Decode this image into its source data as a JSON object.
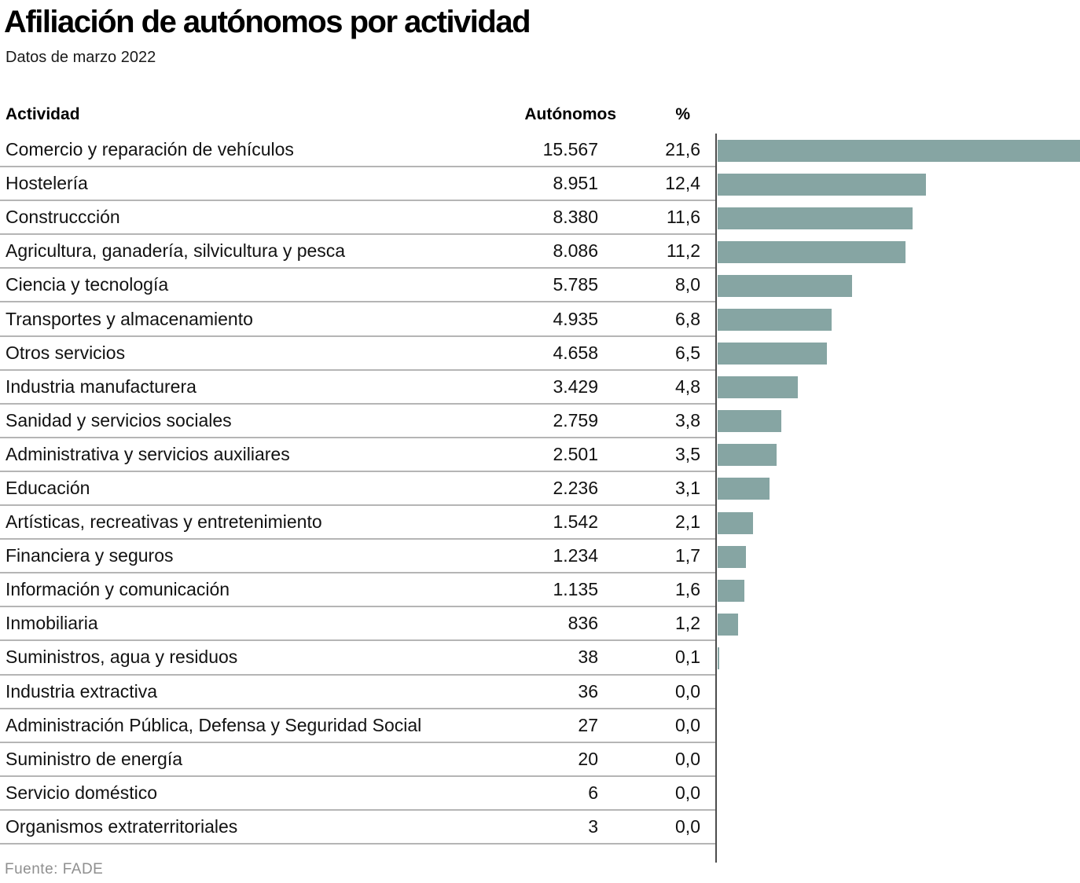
{
  "title": "Afiliación de autónomos por actividad",
  "subtitle": "Datos de marzo 2022",
  "source": "Fuente: FADE",
  "colors": {
    "bar": "#86a5a3",
    "divider": "#b5b5b5",
    "axis": "#4d4d4d",
    "source_text": "#8f8f8f"
  },
  "table": {
    "headers": {
      "activity": "Actividad",
      "autonomos": "Autónomos",
      "pct": "%"
    }
  },
  "chart_data": {
    "type": "bar",
    "orientation": "horizontal",
    "title": "Afiliación de autónomos por actividad",
    "subtitle": "Datos de marzo 2022",
    "source": "Fuente: FADE",
    "columns": [
      "Actividad",
      "Autónomos",
      "%"
    ],
    "max_pct": 21.6,
    "legend": false,
    "grid": false,
    "rows": [
      {
        "activity": "Comercio y reparación de vehículos",
        "autonomos": "15.567",
        "pct": "21,6",
        "pct_value": 21.6
      },
      {
        "activity": "Hostelería",
        "autonomos": "8.951",
        "pct": "12,4",
        "pct_value": 12.4
      },
      {
        "activity": "Construccción",
        "autonomos": "8.380",
        "pct": "11,6",
        "pct_value": 11.6
      },
      {
        "activity": "Agricultura, ganadería, silvicultura y pesca",
        "autonomos": "8.086",
        "pct": "11,2",
        "pct_value": 11.2
      },
      {
        "activity": "Ciencia y tecnología",
        "autonomos": "5.785",
        "pct": "8,0",
        "pct_value": 8.0
      },
      {
        "activity": "Transportes y almacenamiento",
        "autonomos": "4.935",
        "pct": "6,8",
        "pct_value": 6.8
      },
      {
        "activity": "Otros servicios",
        "autonomos": "4.658",
        "pct": "6,5",
        "pct_value": 6.5
      },
      {
        "activity": "Industria manufacturera",
        "autonomos": "3.429",
        "pct": "4,8",
        "pct_value": 4.8
      },
      {
        "activity": "Sanidad y servicios sociales",
        "autonomos": "2.759",
        "pct": "3,8",
        "pct_value": 3.8
      },
      {
        "activity": "Administrativa y servicios auxiliares",
        "autonomos": "2.501",
        "pct": "3,5",
        "pct_value": 3.5
      },
      {
        "activity": "Educación",
        "autonomos": "2.236",
        "pct": "3,1",
        "pct_value": 3.1
      },
      {
        "activity": "Artísticas, recreativas y entretenimiento",
        "autonomos": "1.542",
        "pct": "2,1",
        "pct_value": 2.1
      },
      {
        "activity": "Financiera y seguros",
        "autonomos": "1.234",
        "pct": "1,7",
        "pct_value": 1.7
      },
      {
        "activity": "Información y comunicación",
        "autonomos": "1.135",
        "pct": "1,6",
        "pct_value": 1.6
      },
      {
        "activity": "Inmobiliaria",
        "autonomos": "836",
        "pct": "1,2",
        "pct_value": 1.2
      },
      {
        "activity": "Suministros, agua y residuos",
        "autonomos": "38",
        "pct": "0,1",
        "pct_value": 0.1
      },
      {
        "activity": "Industria extractiva",
        "autonomos": "36",
        "pct": "0,0",
        "pct_value": 0.0
      },
      {
        "activity": "Administración Pública, Defensa y Seguridad Social",
        "autonomos": "27",
        "pct": "0,0",
        "pct_value": 0.0
      },
      {
        "activity": "Suministro de energía",
        "autonomos": "20",
        "pct": "0,0",
        "pct_value": 0.0
      },
      {
        "activity": "Servicio doméstico",
        "autonomos": "6",
        "pct": "0,0",
        "pct_value": 0.0
      },
      {
        "activity": "Organismos extraterritoriales",
        "autonomos": "3",
        "pct": "0,0",
        "pct_value": 0.0
      }
    ]
  }
}
